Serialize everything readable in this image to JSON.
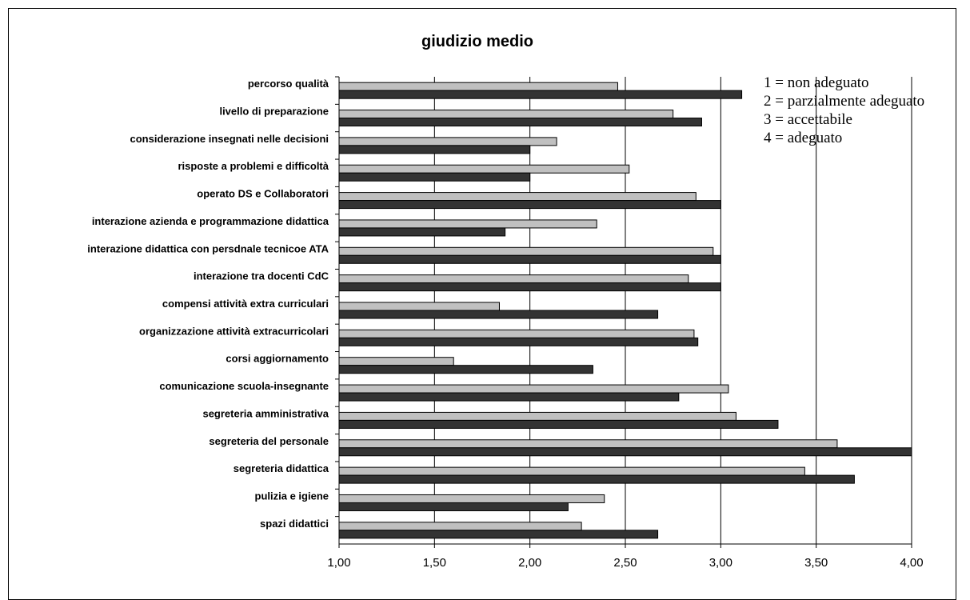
{
  "chart_data": {
    "type": "bar",
    "orientation": "horizontal",
    "title": "giudizio medio",
    "xlabel": "",
    "ylabel": "",
    "xlim": [
      1,
      4
    ],
    "xticks": [
      "1,00",
      "1,50",
      "2,00",
      "2,50",
      "3,00",
      "3,50",
      "4,00"
    ],
    "xtick_values": [
      1,
      1.5,
      2,
      2.5,
      3,
      3.5,
      4
    ],
    "grid": "vertical",
    "categories": [
      "percorso qualità",
      "livello di preparazione",
      "considerazione insegnati nelle decisioni",
      "risposte a problemi e difficoltà",
      "operato DS e Collaboratori",
      "interazione azienda e programmazione didattica",
      "interazione didattica con persdnale tecnicoe ATA",
      "interazione tra docenti CdC",
      "compensi attività extra curriculari",
      "organizzazione attività extracurricolari",
      "corsi aggiornamento",
      "comunicazione scuola-insegnante",
      "segreteria amministrativa",
      "segreteria del personale",
      "segreteria didattica",
      "pulizia e igiene",
      "spazi didattici"
    ],
    "series": [
      {
        "color": "#c0c0c0",
        "values": [
          2.46,
          2.75,
          2.14,
          2.52,
          2.87,
          2.35,
          2.96,
          2.83,
          1.84,
          2.86,
          1.6,
          3.04,
          3.08,
          3.61,
          3.44,
          2.39,
          2.27
        ]
      },
      {
        "color": "#333333",
        "values": [
          3.11,
          2.9,
          2.0,
          2.0,
          3.0,
          1.87,
          3.0,
          3.0,
          2.67,
          2.88,
          2.33,
          2.78,
          3.3,
          4.0,
          3.7,
          2.2,
          2.67
        ]
      }
    ],
    "legend": {
      "placement": "top-right",
      "entries": [
        "1 = non adeguato",
        "2 = parzialmente adeguato",
        "3 = accettabile",
        "4 = adeguato"
      ]
    }
  }
}
